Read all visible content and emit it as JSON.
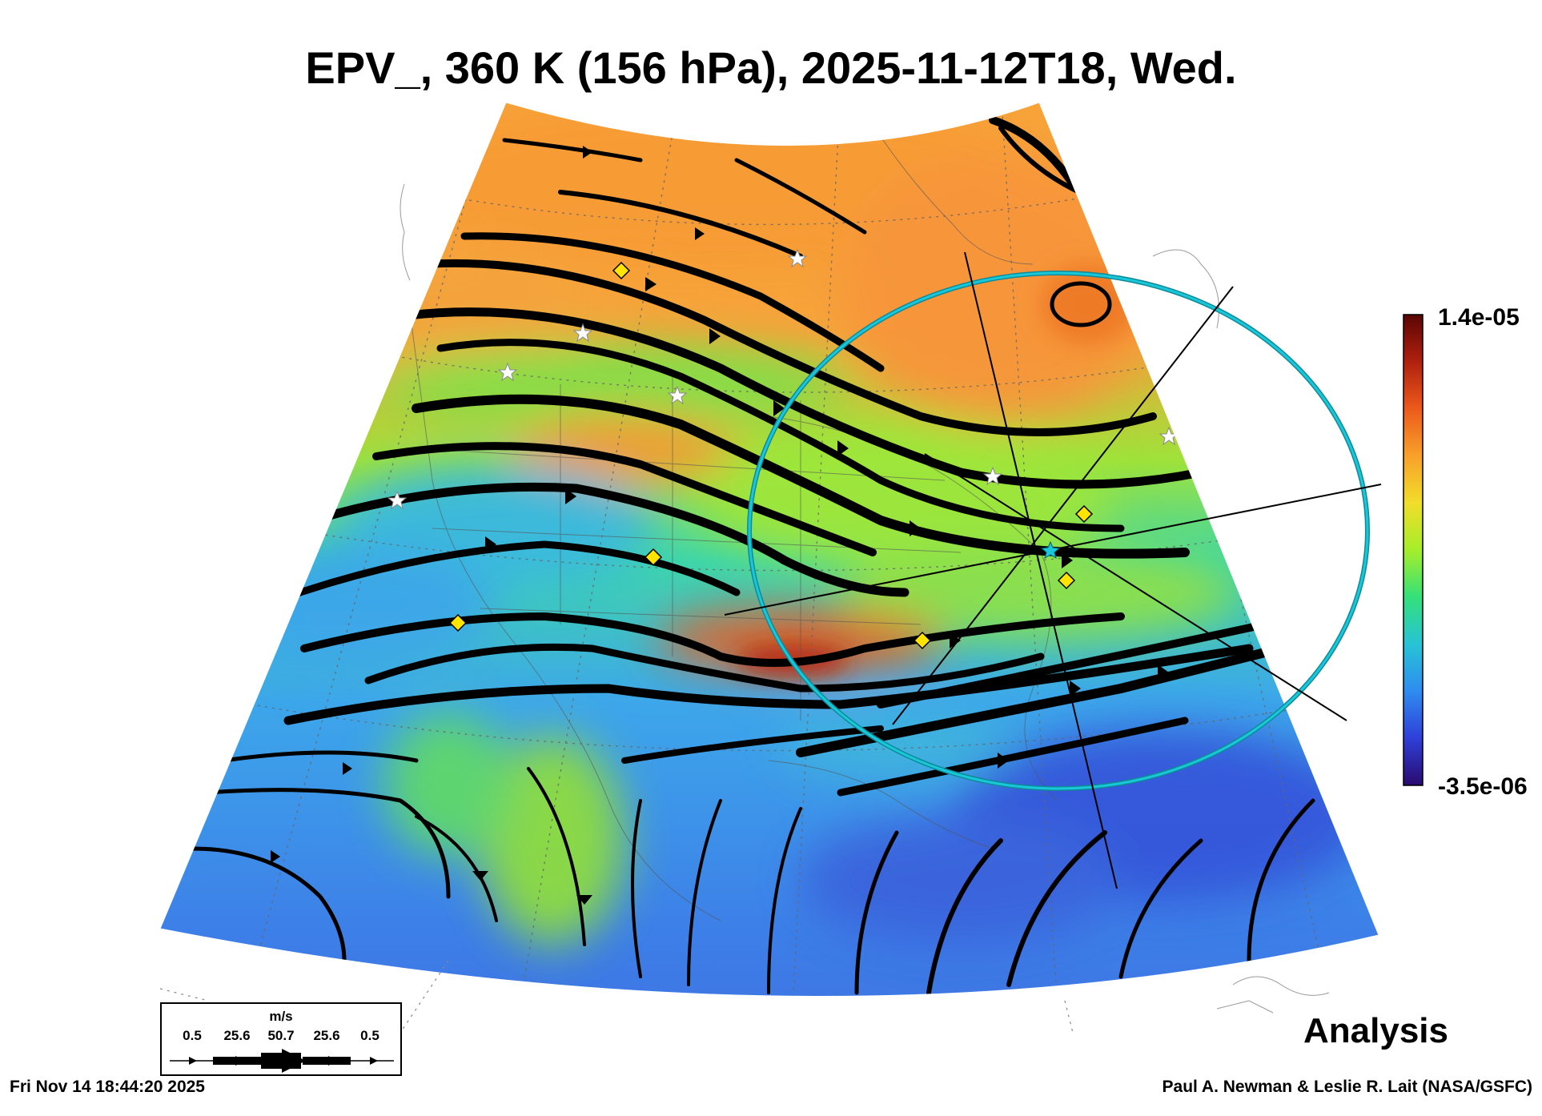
{
  "title": "EPV_, 360 K (156 hPa), 2025-11-12T18, Wed.",
  "colorbar": {
    "max_label": "1.4e-05",
    "min_label": "-3.5e-06",
    "colors": [
      "#2a0a6e",
      "#2f3fd8",
      "#2f8cf0",
      "#27c3d6",
      "#34e07a",
      "#a6ee2a",
      "#f2dd2a",
      "#f8a12a",
      "#ec5a1c",
      "#b0200f",
      "#5a0505"
    ]
  },
  "map_colors": {
    "low": "#3d7fe8",
    "mid": "#4ad2a0",
    "green": "#8fe03c",
    "high": "#f6a33a",
    "very_high": "#e3561c",
    "cyan_ring": "#18c8d8",
    "marker_yellow": "#ffe400"
  },
  "legend": {
    "unit": "m/s",
    "values": [
      "0.5",
      "25.6",
      "50.7",
      "25.6",
      "0.5"
    ]
  },
  "label_analysis": "Analysis",
  "footer": {
    "timestamp": "Fri Nov 14 18:44:20 2025",
    "credit": "Paul A. Newman & Leslie R. Lait (NASA/GSFC)"
  }
}
